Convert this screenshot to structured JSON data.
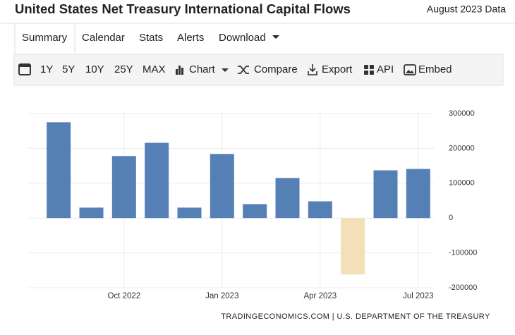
{
  "header": {
    "title": "United States Net Treasury International Capital Flows",
    "date": "August 2023 Data"
  },
  "tabs": [
    "Summary",
    "Calendar",
    "Stats",
    "Alerts",
    "Download"
  ],
  "toolbar": [
    "1Y",
    "5Y",
    "10Y",
    "25Y",
    "MAX",
    "Chart",
    "Compare",
    "Export",
    "API",
    "Embed"
  ],
  "chart_data": {
    "type": "bar",
    "categories": [
      null,
      null,
      "Oct 2022",
      null,
      null,
      "Jan 2023",
      null,
      null,
      "Apr 2023",
      null,
      null,
      "Jul 2023"
    ],
    "values": [
      275000,
      30000,
      178000,
      216000,
      30000,
      184000,
      40000,
      115000,
      48000,
      -162000,
      137000,
      141000
    ],
    "color": "#5580b6",
    "negative_color": "#f4e0b8",
    "ylim": [
      -200000,
      300000
    ],
    "yticks": [
      -200000,
      -100000,
      0,
      100000,
      200000,
      300000
    ],
    "grid": true,
    "y_axis_side": "right",
    "source": "TRADINGECONOMICS.COM | U.S. DEPARTMENT OF THE TREASURY"
  }
}
